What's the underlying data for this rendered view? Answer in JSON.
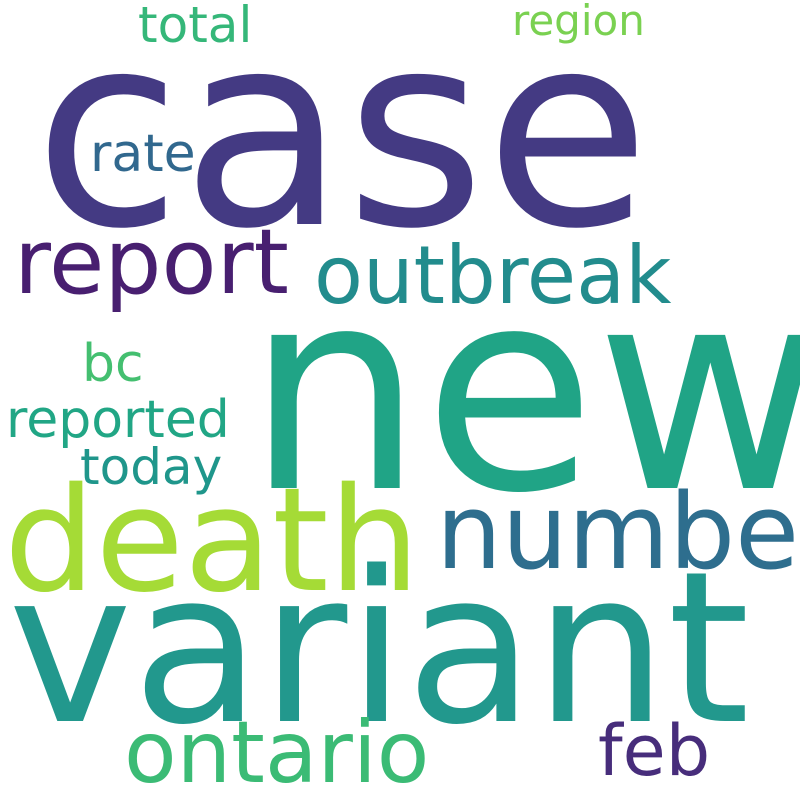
{
  "words": [
    {
      "text": "case",
      "color": "#443a83"
    },
    {
      "text": "new",
      "color": "#20a486"
    },
    {
      "text": "variant",
      "color": "#22988d"
    },
    {
      "text": "death",
      "color": "#a5db36"
    },
    {
      "text": "number",
      "color": "#2e6e8e"
    },
    {
      "text": "report",
      "color": "#481f70"
    },
    {
      "text": "outbreak",
      "color": "#228c8d"
    },
    {
      "text": "ontario",
      "color": "#3bbb75"
    },
    {
      "text": "feb",
      "color": "#472d7b"
    },
    {
      "text": "reported",
      "color": "#21a685"
    },
    {
      "text": "today",
      "color": "#1f968b"
    },
    {
      "text": "total",
      "color": "#35b779"
    },
    {
      "text": "region",
      "color": "#7ad151"
    },
    {
      "text": "rate",
      "color": "#31688e"
    },
    {
      "text": "bc",
      "color": "#44bf70"
    }
  ]
}
